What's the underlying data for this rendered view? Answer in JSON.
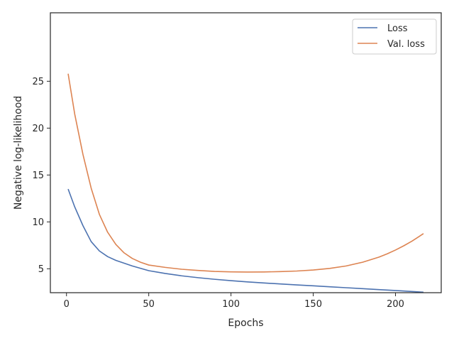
{
  "chart_data": {
    "type": "line",
    "xlabel": "Epochs",
    "ylabel": "Negative log-likelihood",
    "xlim": [
      -9.8,
      227.8
    ],
    "ylim": [
      2.45,
      32.3
    ],
    "xticks": [
      0,
      50,
      100,
      150,
      200
    ],
    "yticks": [
      5,
      10,
      15,
      20,
      25
    ],
    "grid": false,
    "legend_position": "upper right",
    "series": [
      {
        "name": "Loss",
        "color": "#4c72b0",
        "x": [
          1,
          5,
          10,
          15,
          20,
          25,
          30,
          40,
          50,
          60,
          70,
          80,
          90,
          100,
          110,
          120,
          130,
          140,
          150,
          160,
          170,
          180,
          190,
          200,
          210,
          217
        ],
        "y": [
          13.5,
          11.6,
          9.6,
          7.9,
          6.9,
          6.3,
          5.9,
          5.3,
          4.8,
          4.5,
          4.25,
          4.05,
          3.88,
          3.73,
          3.6,
          3.49,
          3.38,
          3.28,
          3.18,
          3.08,
          2.98,
          2.88,
          2.78,
          2.68,
          2.58,
          2.5
        ]
      },
      {
        "name": "Val. loss",
        "color": "#dd8452",
        "x": [
          1,
          5,
          10,
          15,
          20,
          25,
          30,
          35,
          40,
          45,
          50,
          60,
          70,
          80,
          90,
          100,
          110,
          120,
          130,
          140,
          150,
          160,
          170,
          180,
          190,
          195,
          200,
          205,
          210,
          214,
          217
        ],
        "y": [
          25.8,
          21.5,
          17.2,
          13.6,
          10.8,
          8.9,
          7.6,
          6.7,
          6.1,
          5.7,
          5.4,
          5.15,
          4.95,
          4.82,
          4.72,
          4.67,
          4.65,
          4.66,
          4.7,
          4.76,
          4.87,
          5.04,
          5.3,
          5.7,
          6.25,
          6.6,
          7.0,
          7.45,
          7.95,
          8.4,
          8.75
        ]
      }
    ]
  }
}
